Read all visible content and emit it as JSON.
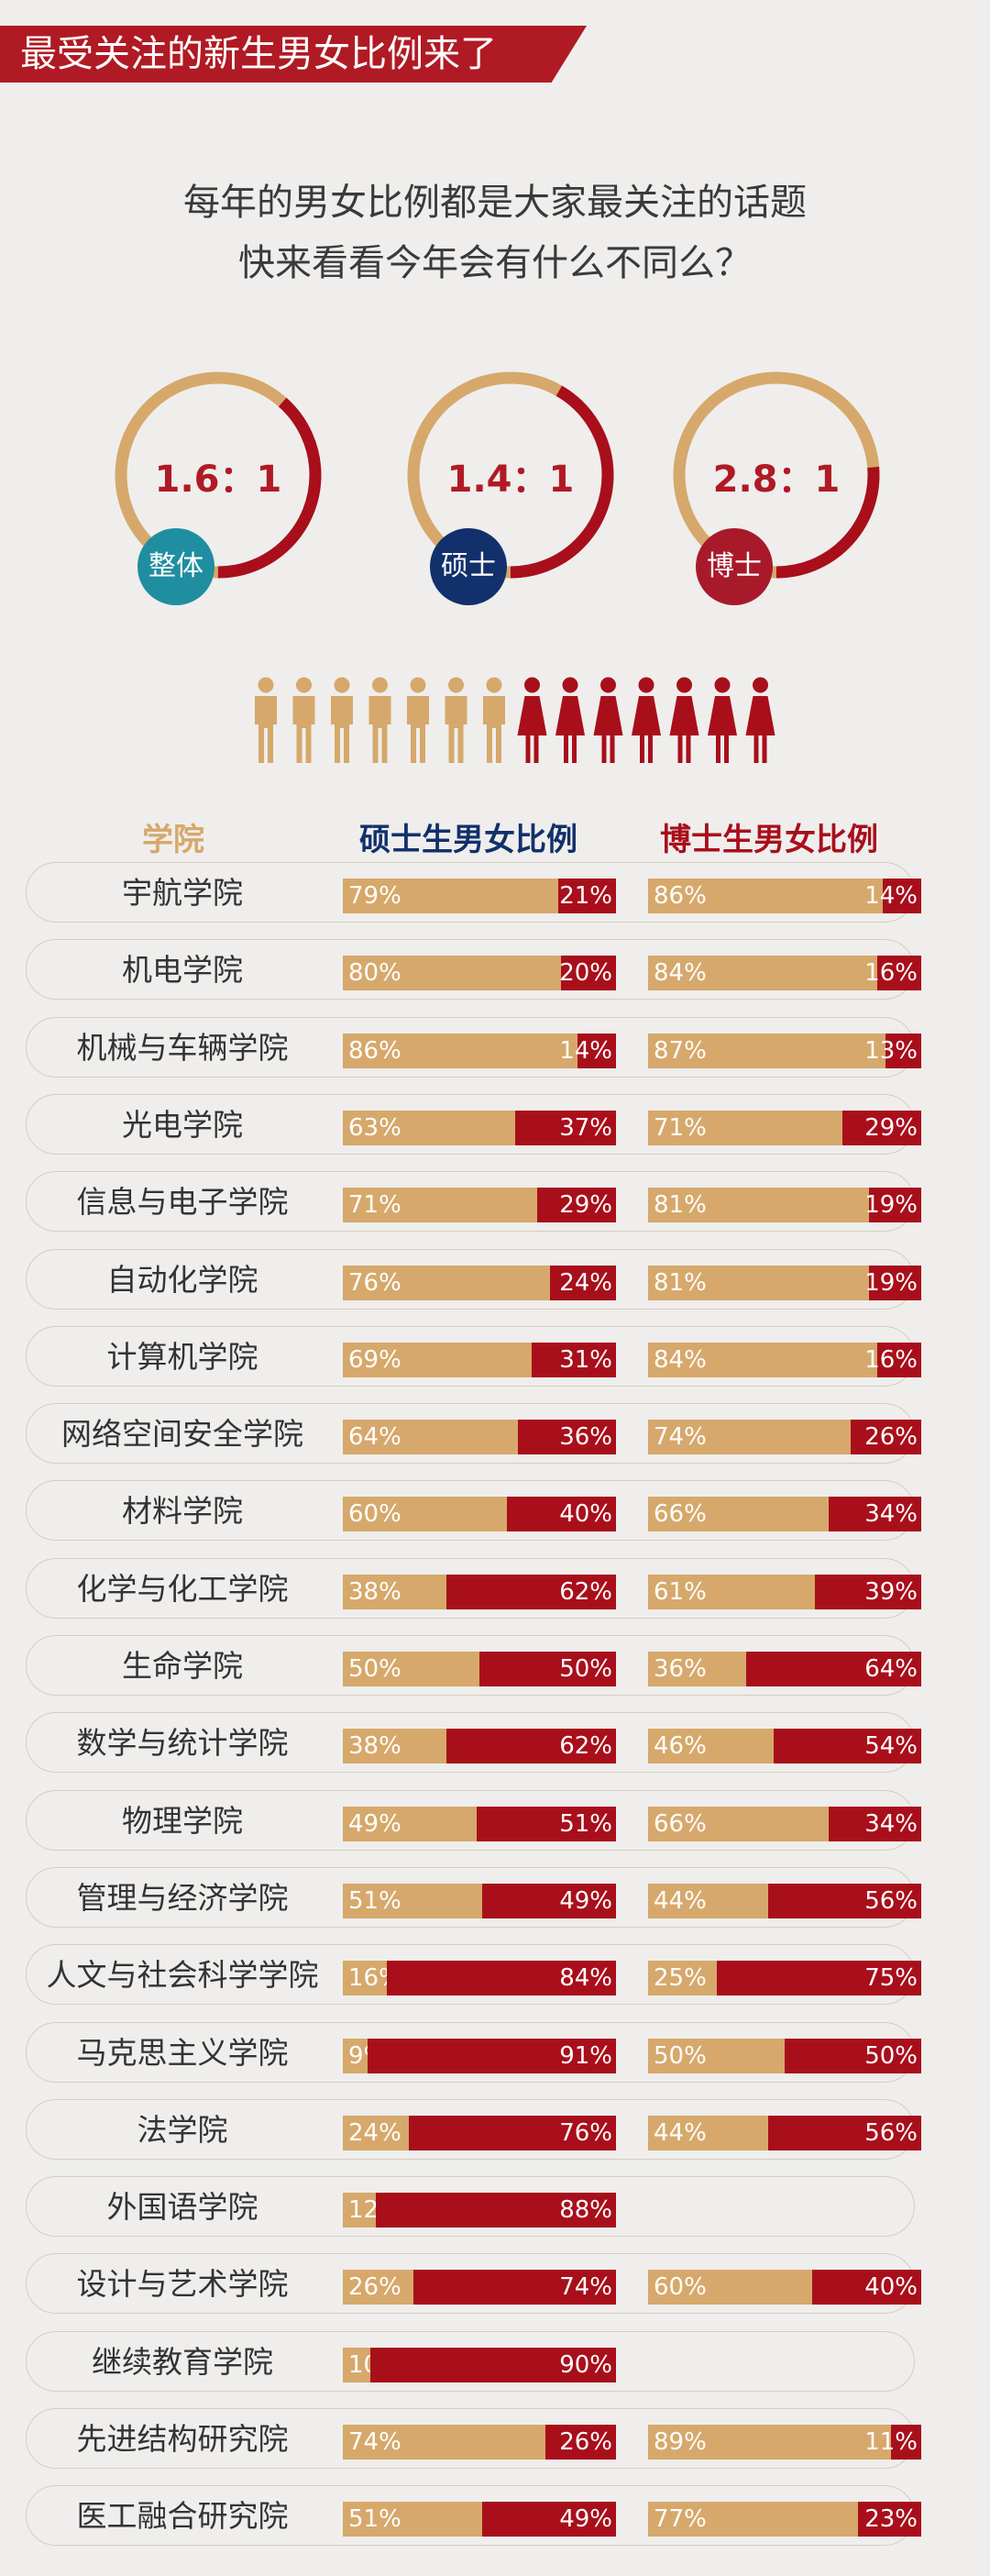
{
  "banner": {
    "title": "最受关注的新生男女比例来了"
  },
  "intro": {
    "line1": "每年的男女比例都是大家最关注的话题",
    "line2": "快来看看今年会有什么不同么？"
  },
  "colors": {
    "male": "#d6a86b",
    "female": "#a80f1b",
    "brand_red": "#b01a24"
  },
  "rings": [
    {
      "ratio": "1.6：1",
      "label": "整体",
      "male_share": 0.615,
      "badge_color": "#1f8ea0"
    },
    {
      "ratio": "1.4：1",
      "label": "硕士",
      "male_share": 0.583,
      "badge_color": "#12306b"
    },
    {
      "ratio": "2.8：1",
      "label": "博士",
      "male_share": 0.737,
      "badge_color": "#a81a2a"
    }
  ],
  "pictogram": {
    "male_count": 7,
    "female_count": 7,
    "male_icon": "male-person-icon",
    "female_icon": "female-person-icon"
  },
  "chart_data": {
    "type": "bar",
    "stacked": true,
    "headers": {
      "school": "学院",
      "master": "硕士生男女比例",
      "doctor": "博士生男女比例"
    },
    "categories": [
      "宇航学院",
      "机电学院",
      "机械与车辆学院",
      "光电学院",
      "信息与电子学院",
      "自动化学院",
      "计算机学院",
      "网络空间安全学院",
      "材料学院",
      "化学与化工学院",
      "生命学院",
      "数学与统计学院",
      "物理学院",
      "管理与经济学院",
      "人文与社会科学学院",
      "马克思主义学院",
      "法学院",
      "外国语学院",
      "设计与艺术学院",
      "继续教育学院",
      "先进结构研究院",
      "医工融合研究院"
    ],
    "master": [
      [
        79,
        21
      ],
      [
        80,
        20
      ],
      [
        86,
        14
      ],
      [
        63,
        37
      ],
      [
        71,
        29
      ],
      [
        76,
        24
      ],
      [
        69,
        31
      ],
      [
        64,
        36
      ],
      [
        60,
        40
      ],
      [
        38,
        62
      ],
      [
        50,
        50
      ],
      [
        38,
        62
      ],
      [
        49,
        51
      ],
      [
        51,
        49
      ],
      [
        16,
        84
      ],
      [
        9,
        91
      ],
      [
        24,
        76
      ],
      [
        12,
        88
      ],
      [
        26,
        74
      ],
      [
        10,
        90
      ],
      [
        74,
        26
      ],
      [
        51,
        49
      ]
    ],
    "doctor": [
      [
        86,
        14
      ],
      [
        84,
        16
      ],
      [
        87,
        13
      ],
      [
        71,
        29
      ],
      [
        81,
        19
      ],
      [
        81,
        19
      ],
      [
        84,
        16
      ],
      [
        74,
        26
      ],
      [
        66,
        34
      ],
      [
        61,
        39
      ],
      [
        36,
        64
      ],
      [
        46,
        54
      ],
      [
        66,
        34
      ],
      [
        44,
        56
      ],
      [
        25,
        75
      ],
      [
        50,
        50
      ],
      [
        44,
        56
      ],
      null,
      [
        60,
        40
      ],
      null,
      [
        89,
        11
      ],
      [
        77,
        23
      ]
    ],
    "series": [
      {
        "name": "男"
      },
      {
        "name": "女"
      }
    ]
  }
}
